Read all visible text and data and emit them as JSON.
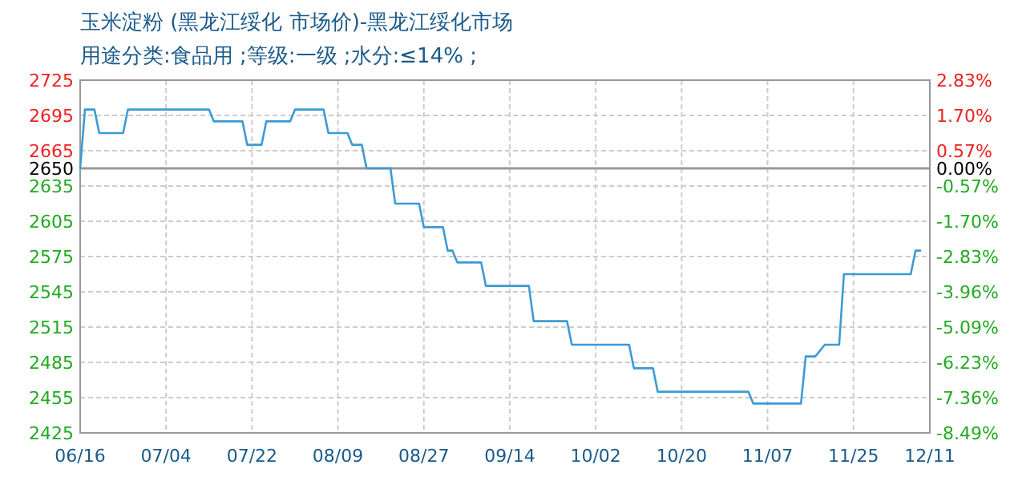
{
  "chart_data": {
    "type": "line",
    "title": "玉米淀粉 (黑龙江绥化 市场价)-黑龙江绥化市场",
    "subtitle": "用途分类:食品用 ;等级:一级 ;水分:≤14% ;",
    "series": [
      {
        "color": "#3c9ad6",
        "x": [
          "--06-16",
          "--06-17",
          "--06-19",
          "--06-20",
          "--06-25",
          "--06-26",
          "--07-13",
          "--07-14",
          "--07-20",
          "--07-21",
          "--07-24",
          "--07-25",
          "--07-30",
          "--07-31",
          "--08-06",
          "--08-07",
          "--08-11",
          "--08-12",
          "--08-14",
          "--08-15",
          "--08-20",
          "--08-21",
          "--08-26",
          "--08-27",
          "--08-31",
          "--09-01",
          "--09-02",
          "--09-03",
          "--09-08",
          "--09-09",
          "--09-18",
          "--09-19",
          "--09-26",
          "--09-27",
          "--10-09",
          "--10-10",
          "--10-14",
          "--10-15",
          "--11-03",
          "--11-04",
          "--11-14",
          "--11-15",
          "--11-17",
          "--11-19",
          "--11-22",
          "--11-23",
          "--12-07",
          "--12-08",
          "--12-09"
        ],
        "values": [
          2650,
          2700,
          2700,
          2680,
          2680,
          2700,
          2700,
          2690,
          2690,
          2670,
          2670,
          2690,
          2690,
          2700,
          2700,
          2680,
          2680,
          2670,
          2670,
          2650,
          2650,
          2620,
          2620,
          2600,
          2600,
          2580,
          2580,
          2570,
          2570,
          2550,
          2550,
          2520,
          2520,
          2500,
          2500,
          2480,
          2480,
          2460,
          2460,
          2450,
          2450,
          2490,
          2490,
          2500,
          2500,
          2560,
          2560,
          2580,
          2580
        ]
      }
    ],
    "xlim": [
      "--06-16",
      "--12-11"
    ],
    "xticks": [
      {
        "value": "--06-16",
        "label": "06/16"
      },
      {
        "value": "--07-04",
        "label": "07/04"
      },
      {
        "value": "--07-22",
        "label": "07/22"
      },
      {
        "value": "--08-09",
        "label": "08/09"
      },
      {
        "value": "--08-27",
        "label": "08/27"
      },
      {
        "value": "--09-14",
        "label": "09/14"
      },
      {
        "value": "--10-02",
        "label": "10/02"
      },
      {
        "value": "--10-20",
        "label": "10/20"
      },
      {
        "value": "--11-07",
        "label": "11/07"
      },
      {
        "value": "--11-25",
        "label": "11/25"
      },
      {
        "value": "--12-11",
        "label": "12/11"
      }
    ],
    "ylim": [
      2425,
      2725
    ],
    "yticks": [
      2425,
      2455,
      2485,
      2515,
      2545,
      2575,
      2605,
      2635,
      2650,
      2665,
      2695,
      2725
    ],
    "y2lim": [
      -8.49,
      2.83
    ],
    "y2ticks": [
      {
        "value": 2.83,
        "label": "2.83%"
      },
      {
        "value": 1.7,
        "label": "1.70%"
      },
      {
        "value": 0.57,
        "label": "0.57%"
      },
      {
        "value": 0,
        "label": "0.00%"
      },
      {
        "value": -0.57,
        "label": "-0.57%"
      },
      {
        "value": -1.7,
        "label": "-1.70%"
      },
      {
        "value": -2.83,
        "label": "-2.83%"
      },
      {
        "value": -3.96,
        "label": "-3.96%"
      },
      {
        "value": -5.09,
        "label": "-5.09%"
      },
      {
        "value": -6.23,
        "label": "-6.23%"
      },
      {
        "value": -7.36,
        "label": "-7.36%"
      },
      {
        "value": -8.49,
        "label": "-8.49%"
      }
    ],
    "ref_lines": [
      {
        "axis": "y",
        "value": 2650,
        "color": "#999999"
      }
    ],
    "grid": true
  }
}
